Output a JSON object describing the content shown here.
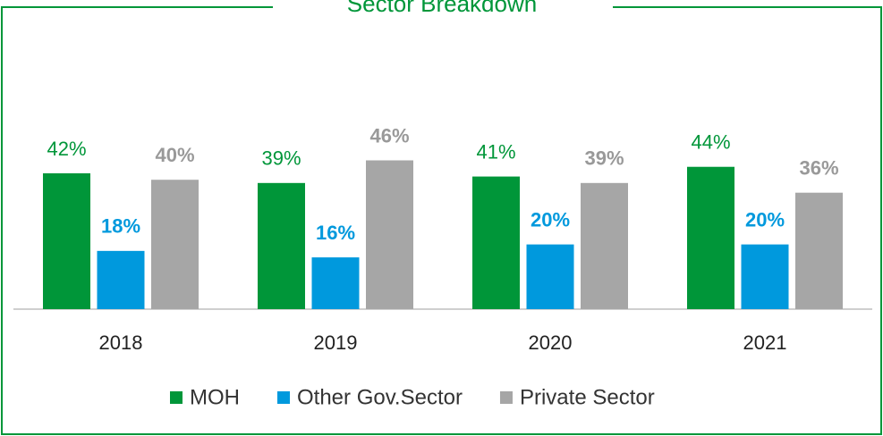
{
  "chart_data": {
    "type": "bar",
    "title": "Sector Breakdown",
    "categories": [
      "2018",
      "2019",
      "2020",
      "2021"
    ],
    "series": [
      {
        "name": "MOH",
        "color": "#009639",
        "values": [
          42,
          39,
          41,
          44
        ],
        "value_labels": [
          "42%",
          "39%",
          "41%",
          "44%"
        ]
      },
      {
        "name": "Other Gov.Sector",
        "color": "#0099dd",
        "values": [
          18,
          16,
          20,
          20
        ],
        "value_labels": [
          "18%",
          "16%",
          "20%",
          "20%"
        ]
      },
      {
        "name": "Private Sector",
        "color": "#a6a6a6",
        "values": [
          40,
          46,
          39,
          36
        ],
        "value_labels": [
          "40%",
          "46%",
          "39%",
          "36%"
        ]
      }
    ],
    "legend": "bottom"
  }
}
